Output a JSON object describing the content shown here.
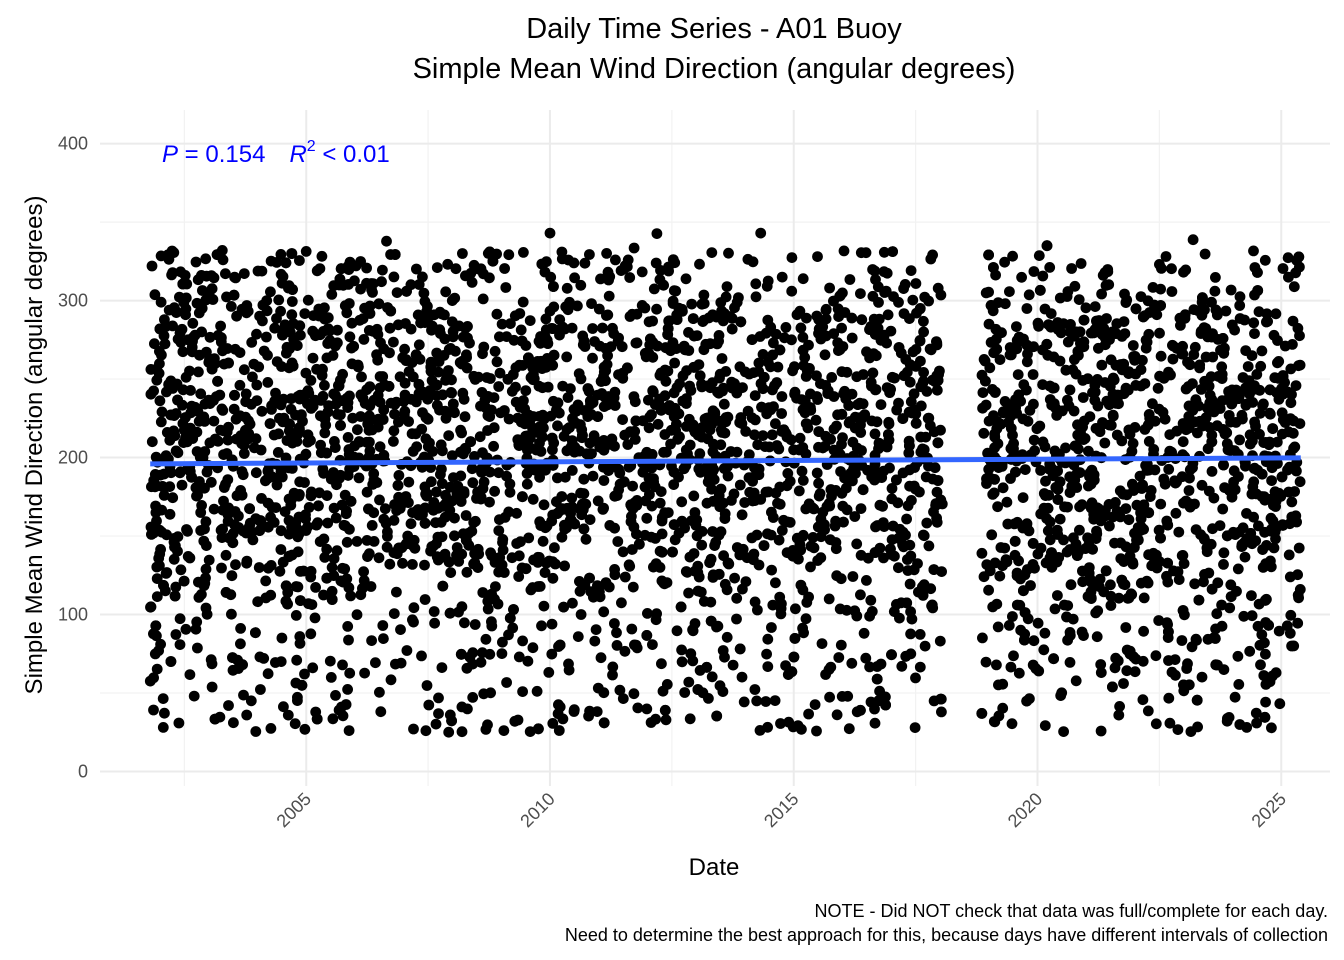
{
  "chart_data": {
    "type": "scatter",
    "title": "Daily Time Series - A01 Buoy",
    "subtitle": "Simple Mean Wind Direction (angular degrees)",
    "xlabel": "Date",
    "ylabel": "Simple Mean Wind Direction (angular degrees)",
    "x_tick_labels": [
      "2005",
      "2010",
      "2015",
      "2020",
      "2025"
    ],
    "x_tick_values": [
      2005,
      2010,
      2015,
      2020,
      2025
    ],
    "y_tick_labels": [
      "0",
      "100",
      "200",
      "300",
      "400"
    ],
    "y_tick_values": [
      0,
      100,
      200,
      300,
      400
    ],
    "xlim": [
      2000.77,
      2026.0
    ],
    "ylim": [
      0,
      400
    ],
    "grid": true,
    "data_range": {
      "x_start": 2001.8,
      "x_end": 2025.4,
      "gap": [
        2018.05,
        2018.85
      ]
    },
    "point_color": "#000000",
    "annotation": {
      "p_symbol": "P",
      "p_text": " = 0.154",
      "r_symbol": "R",
      "r_sup": "2",
      "r_text": " < 0.01"
    },
    "trend_line": {
      "color": "#3366ff",
      "x": [
        2001.8,
        2025.4
      ],
      "y": [
        196.0,
        199.8
      ]
    },
    "caption": [
      "NOTE - Did NOT check that data was full/complete for each day.",
      "Need to determine the best approach for this, because days have different intervals of collection"
    ]
  }
}
